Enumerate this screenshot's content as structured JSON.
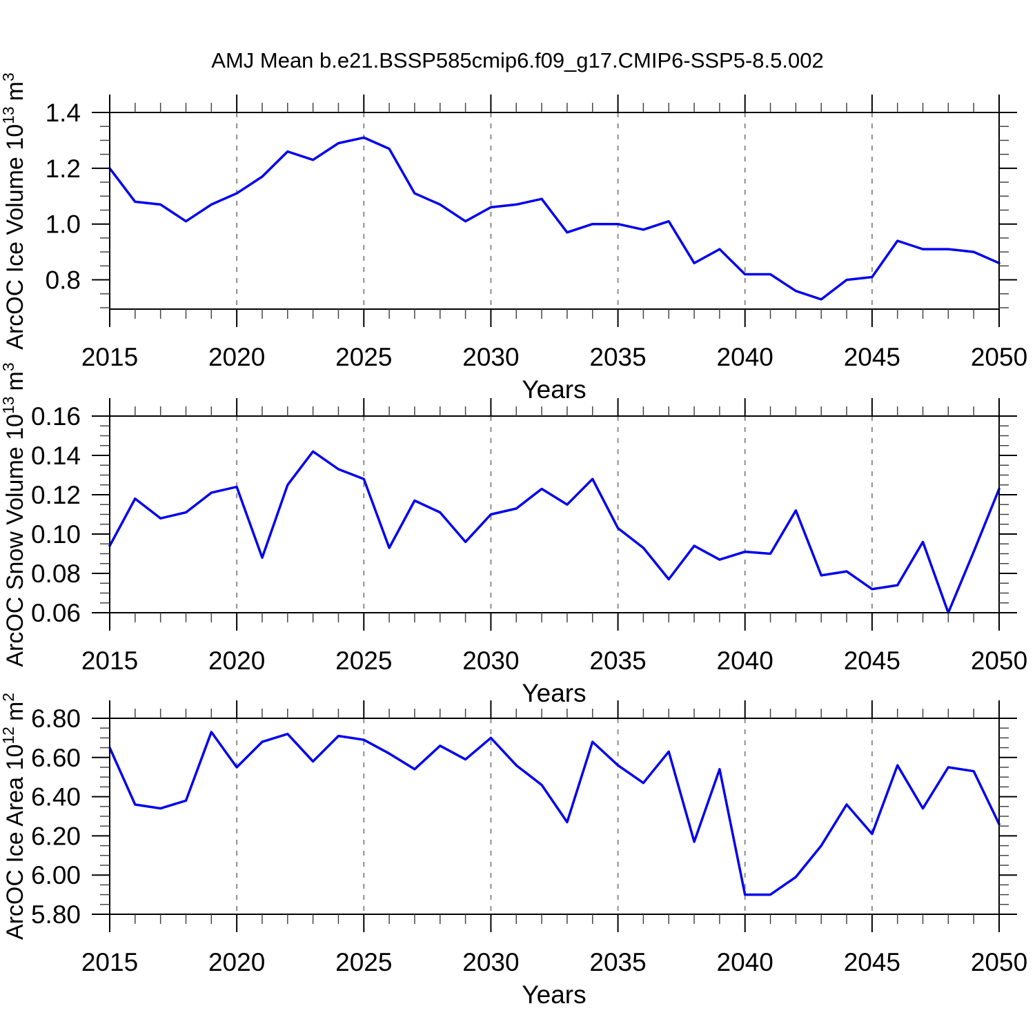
{
  "title": "AMJ Mean b.e21.BSSP585cmip6.f09_g17.CMIP6-SSP5-8.5.002",
  "style": {
    "line_color": "#0000f0",
    "grid_color": "#8c8c8c",
    "axis_color": "#000000",
    "minor_tick_color": "#444444",
    "background": "#ffffff"
  },
  "chart_data": [
    {
      "type": "line",
      "series_name": "ice-volume",
      "ylabel": {
        "base": "ArcOC Ice Volume 10",
        "exp": "13",
        "unit": "m",
        "unit_exp": "3"
      },
      "xlabel": "Years",
      "x": [
        2015,
        2016,
        2017,
        2018,
        2019,
        2020,
        2021,
        2022,
        2023,
        2024,
        2025,
        2026,
        2027,
        2028,
        2029,
        2030,
        2031,
        2032,
        2033,
        2034,
        2035,
        2036,
        2037,
        2038,
        2039,
        2040,
        2041,
        2042,
        2043,
        2044,
        2045,
        2046,
        2047,
        2048,
        2049,
        2050
      ],
      "values": [
        1.2,
        1.08,
        1.07,
        1.01,
        1.07,
        1.11,
        1.17,
        1.26,
        1.23,
        1.29,
        1.31,
        1.27,
        1.11,
        1.07,
        1.01,
        1.06,
        1.07,
        1.09,
        0.97,
        1.0,
        1.0,
        0.98,
        1.01,
        0.86,
        0.91,
        0.82,
        0.82,
        0.76,
        0.73,
        0.8,
        0.81,
        0.94,
        0.91,
        0.91,
        0.9,
        0.86
      ],
      "ylim": [
        0.695,
        1.4
      ],
      "yticks": [
        0.8,
        1.0,
        1.2,
        1.4
      ],
      "ytick_labels": [
        "0.8",
        "1.0",
        "1.2",
        "1.4"
      ],
      "yminor_step": 0.05,
      "xticks": [
        2015,
        2020,
        2025,
        2030,
        2035,
        2040,
        2045,
        2050
      ],
      "xtick_labels": [
        "2015",
        "2020",
        "2025",
        "2030",
        "2035",
        "2040",
        "2045",
        "2050"
      ],
      "xminor_step": 1,
      "grid_x": [
        2020,
        2025,
        2030,
        2035,
        2040,
        2045
      ]
    },
    {
      "type": "line",
      "series_name": "snow-volume",
      "ylabel": {
        "base": "ArcOC Snow Volume 10",
        "exp": "13",
        "unit": "m",
        "unit_exp": "3"
      },
      "xlabel": "Years",
      "x": [
        2015,
        2016,
        2017,
        2018,
        2019,
        2020,
        2021,
        2022,
        2023,
        2024,
        2025,
        2026,
        2027,
        2028,
        2029,
        2030,
        2031,
        2032,
        2033,
        2034,
        2035,
        2036,
        2037,
        2038,
        2039,
        2040,
        2041,
        2042,
        2043,
        2044,
        2045,
        2046,
        2047,
        2048,
        2049,
        2050
      ],
      "values": [
        0.094,
        0.118,
        0.108,
        0.111,
        0.121,
        0.124,
        0.088,
        0.125,
        0.142,
        0.133,
        0.128,
        0.093,
        0.117,
        0.111,
        0.096,
        0.11,
        0.113,
        0.123,
        0.115,
        0.128,
        0.103,
        0.093,
        0.077,
        0.094,
        0.087,
        0.091,
        0.09,
        0.112,
        0.079,
        0.081,
        0.072,
        0.074,
        0.096,
        0.06,
        0.091,
        0.123
      ],
      "ylim": [
        0.06,
        0.16
      ],
      "yticks": [
        0.06,
        0.08,
        0.1,
        0.12,
        0.14,
        0.16
      ],
      "ytick_labels": [
        "0.06",
        "0.08",
        "0.10",
        "0.12",
        "0.14",
        "0.16"
      ],
      "yminor_step": 0.005,
      "xticks": [
        2015,
        2020,
        2025,
        2030,
        2035,
        2040,
        2045,
        2050
      ],
      "xtick_labels": [
        "2015",
        "2020",
        "2025",
        "2030",
        "2035",
        "2040",
        "2045",
        "2050"
      ],
      "xminor_step": 1,
      "grid_x": [
        2020,
        2025,
        2030,
        2035,
        2040,
        2045
      ]
    },
    {
      "type": "line",
      "series_name": "ice-area",
      "ylabel": {
        "base": "ArcOC Ice Area 10",
        "exp": "12",
        "unit": "m",
        "unit_exp": "2"
      },
      "xlabel": "Years",
      "x": [
        2015,
        2016,
        2017,
        2018,
        2019,
        2020,
        2021,
        2022,
        2023,
        2024,
        2025,
        2026,
        2027,
        2028,
        2029,
        2030,
        2031,
        2032,
        2033,
        2034,
        2035,
        2036,
        2037,
        2038,
        2039,
        2040,
        2041,
        2042,
        2043,
        2044,
        2045,
        2046,
        2047,
        2048,
        2049,
        2050
      ],
      "values": [
        6.65,
        6.36,
        6.34,
        6.38,
        6.73,
        6.55,
        6.68,
        6.72,
        6.58,
        6.71,
        6.69,
        6.62,
        6.54,
        6.66,
        6.59,
        6.7,
        6.56,
        6.46,
        6.27,
        6.68,
        6.56,
        6.47,
        6.63,
        6.17,
        6.54,
        5.9,
        5.9,
        5.99,
        6.15,
        6.36,
        6.21,
        6.56,
        6.34,
        6.55,
        6.53,
        6.26
      ],
      "ylim": [
        5.8,
        6.8
      ],
      "yticks": [
        5.8,
        6.0,
        6.2,
        6.4,
        6.6,
        6.8
      ],
      "ytick_labels": [
        "5.80",
        "6.00",
        "6.20",
        "6.40",
        "6.60",
        "6.80"
      ],
      "yminor_step": 0.05,
      "xticks": [
        2015,
        2020,
        2025,
        2030,
        2035,
        2040,
        2045,
        2050
      ],
      "xtick_labels": [
        "2015",
        "2020",
        "2025",
        "2030",
        "2035",
        "2040",
        "2045",
        "2050"
      ],
      "xminor_step": 1,
      "grid_x": [
        2020,
        2025,
        2030,
        2035,
        2040,
        2045
      ]
    }
  ]
}
